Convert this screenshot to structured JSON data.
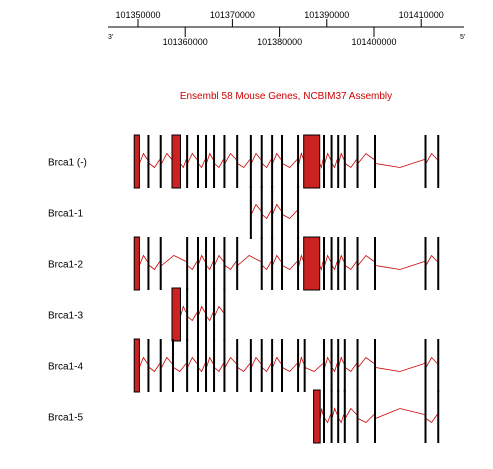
{
  "ruler": {
    "strand_left": "3'",
    "strand_right": "5'",
    "labels": [
      {
        "value": 101350000,
        "text": "101350000",
        "row": "top"
      },
      {
        "value": 101360000,
        "text": "101360000",
        "row": "bottom"
      },
      {
        "value": 101370000,
        "text": "101370000",
        "row": "top"
      },
      {
        "value": 101380000,
        "text": "101380000",
        "row": "bottom"
      },
      {
        "value": 101390000,
        "text": "101390000",
        "row": "top"
      },
      {
        "value": 101400000,
        "text": "101400000",
        "row": "bottom"
      },
      {
        "value": 101410000,
        "text": "101410000",
        "row": "top"
      }
    ]
  },
  "track_title": "Ensembl 58 Mouse Genes, NCBIM37 Assembly",
  "colors": {
    "accent": "#cc0000",
    "exon_fill": "#cc2222",
    "text": "#000000"
  },
  "genes": [
    {
      "label": "Brca1 (-)",
      "exons": [
        {
          "start": 101349200,
          "end": 101350300,
          "filled": true
        },
        {
          "start": 101352000,
          "end": 101352400
        },
        {
          "start": 101354600,
          "end": 101355000
        },
        {
          "start": 101357200,
          "end": 101359000,
          "filled": true
        },
        {
          "start": 101360200,
          "end": 101360500
        },
        {
          "start": 101362500,
          "end": 101362750
        },
        {
          "start": 101364200,
          "end": 101364500
        },
        {
          "start": 101365900,
          "end": 101366200
        },
        {
          "start": 101368100,
          "end": 101368400
        },
        {
          "start": 101370800,
          "end": 101371100
        },
        {
          "start": 101373700,
          "end": 101374000
        },
        {
          "start": 101376000,
          "end": 101376300
        },
        {
          "start": 101378200,
          "end": 101378500
        },
        {
          "start": 101380300,
          "end": 101380600
        },
        {
          "start": 101383700,
          "end": 101384100
        },
        {
          "start": 101385100,
          "end": 101388500,
          "filled": true
        },
        {
          "start": 101389200,
          "end": 101389550
        },
        {
          "start": 101390800,
          "end": 101391100
        },
        {
          "start": 101392200,
          "end": 101392500
        },
        {
          "start": 101393600,
          "end": 101393900
        },
        {
          "start": 101396300,
          "end": 101396600
        },
        {
          "start": 101400000,
          "end": 101400300
        },
        {
          "start": 101410700,
          "end": 101411000
        },
        {
          "start": 101413400,
          "end": 101413700
        }
      ]
    },
    {
      "label": "Brca1-1",
      "exons": [
        {
          "start": 101373700,
          "end": 101374000
        },
        {
          "start": 101376000,
          "end": 101376300
        },
        {
          "start": 101378200,
          "end": 101378500
        },
        {
          "start": 101380300,
          "end": 101380600
        },
        {
          "start": 101383700,
          "end": 101384100
        }
      ]
    },
    {
      "label": "Brca1-2",
      "exons": [
        {
          "start": 101349200,
          "end": 101350300,
          "filled": true
        },
        {
          "start": 101352000,
          "end": 101352400
        },
        {
          "start": 101354600,
          "end": 101355000
        },
        {
          "start": 101360200,
          "end": 101360500
        },
        {
          "start": 101362500,
          "end": 101362750
        },
        {
          "start": 101364200,
          "end": 101364500
        },
        {
          "start": 101365900,
          "end": 101366200
        },
        {
          "start": 101368100,
          "end": 101368400
        },
        {
          "start": 101370800,
          "end": 101371100
        },
        {
          "start": 101376000,
          "end": 101376300
        },
        {
          "start": 101378200,
          "end": 101378500
        },
        {
          "start": 101380300,
          "end": 101380600
        },
        {
          "start": 101383700,
          "end": 101384100
        },
        {
          "start": 101385100,
          "end": 101388500,
          "filled": true
        },
        {
          "start": 101389200,
          "end": 101389550
        },
        {
          "start": 101390800,
          "end": 101391100
        },
        {
          "start": 101392200,
          "end": 101392500
        },
        {
          "start": 101393600,
          "end": 101393900
        },
        {
          "start": 101396300,
          "end": 101396600
        },
        {
          "start": 101400000,
          "end": 101400300
        },
        {
          "start": 101410700,
          "end": 101411000
        },
        {
          "start": 101413400,
          "end": 101413700
        }
      ]
    },
    {
      "label": "Brca1-3",
      "exons": [
        {
          "start": 101357200,
          "end": 101359000,
          "filled": true
        },
        {
          "start": 101360200,
          "end": 101360500
        },
        {
          "start": 101362500,
          "end": 101362750
        },
        {
          "start": 101364200,
          "end": 101364500
        },
        {
          "start": 101365900,
          "end": 101366200
        },
        {
          "start": 101368100,
          "end": 101368400
        }
      ]
    },
    {
      "label": "Brca1-4",
      "exons": [
        {
          "start": 101349200,
          "end": 101350300,
          "filled": true
        },
        {
          "start": 101352000,
          "end": 101352400
        },
        {
          "start": 101354600,
          "end": 101355000
        },
        {
          "start": 101357200,
          "end": 101357500
        },
        {
          "start": 101360200,
          "end": 101360500
        },
        {
          "start": 101362500,
          "end": 101362750
        },
        {
          "start": 101364200,
          "end": 101364500
        },
        {
          "start": 101365900,
          "end": 101366200
        },
        {
          "start": 101368100,
          "end": 101368400
        },
        {
          "start": 101370800,
          "end": 101371100
        },
        {
          "start": 101373700,
          "end": 101374000
        },
        {
          "start": 101376000,
          "end": 101376300
        },
        {
          "start": 101378200,
          "end": 101378500
        },
        {
          "start": 101380300,
          "end": 101380600
        },
        {
          "start": 101383700,
          "end": 101384100
        },
        {
          "start": 101385100,
          "end": 101385400
        },
        {
          "start": 101389200,
          "end": 101389550
        },
        {
          "start": 101390800,
          "end": 101391100
        },
        {
          "start": 101392200,
          "end": 101392500
        },
        {
          "start": 101393600,
          "end": 101393900
        },
        {
          "start": 101396300,
          "end": 101396600
        },
        {
          "start": 101400000,
          "end": 101400300
        },
        {
          "start": 101410700,
          "end": 101411000
        },
        {
          "start": 101413400,
          "end": 101413700
        }
      ]
    },
    {
      "label": "Brca1-5",
      "exons": [
        {
          "start": 101387200,
          "end": 101388600,
          "filled": true
        },
        {
          "start": 101389200,
          "end": 101389550
        },
        {
          "start": 101390800,
          "end": 101391100
        },
        {
          "start": 101392200,
          "end": 101392500
        },
        {
          "start": 101393600,
          "end": 101393900
        },
        {
          "start": 101396300,
          "end": 101396600
        },
        {
          "start": 101400000,
          "end": 101400300
        },
        {
          "start": 101410700,
          "end": 101411000
        },
        {
          "start": 101413400,
          "end": 101413700
        }
      ]
    }
  ]
}
